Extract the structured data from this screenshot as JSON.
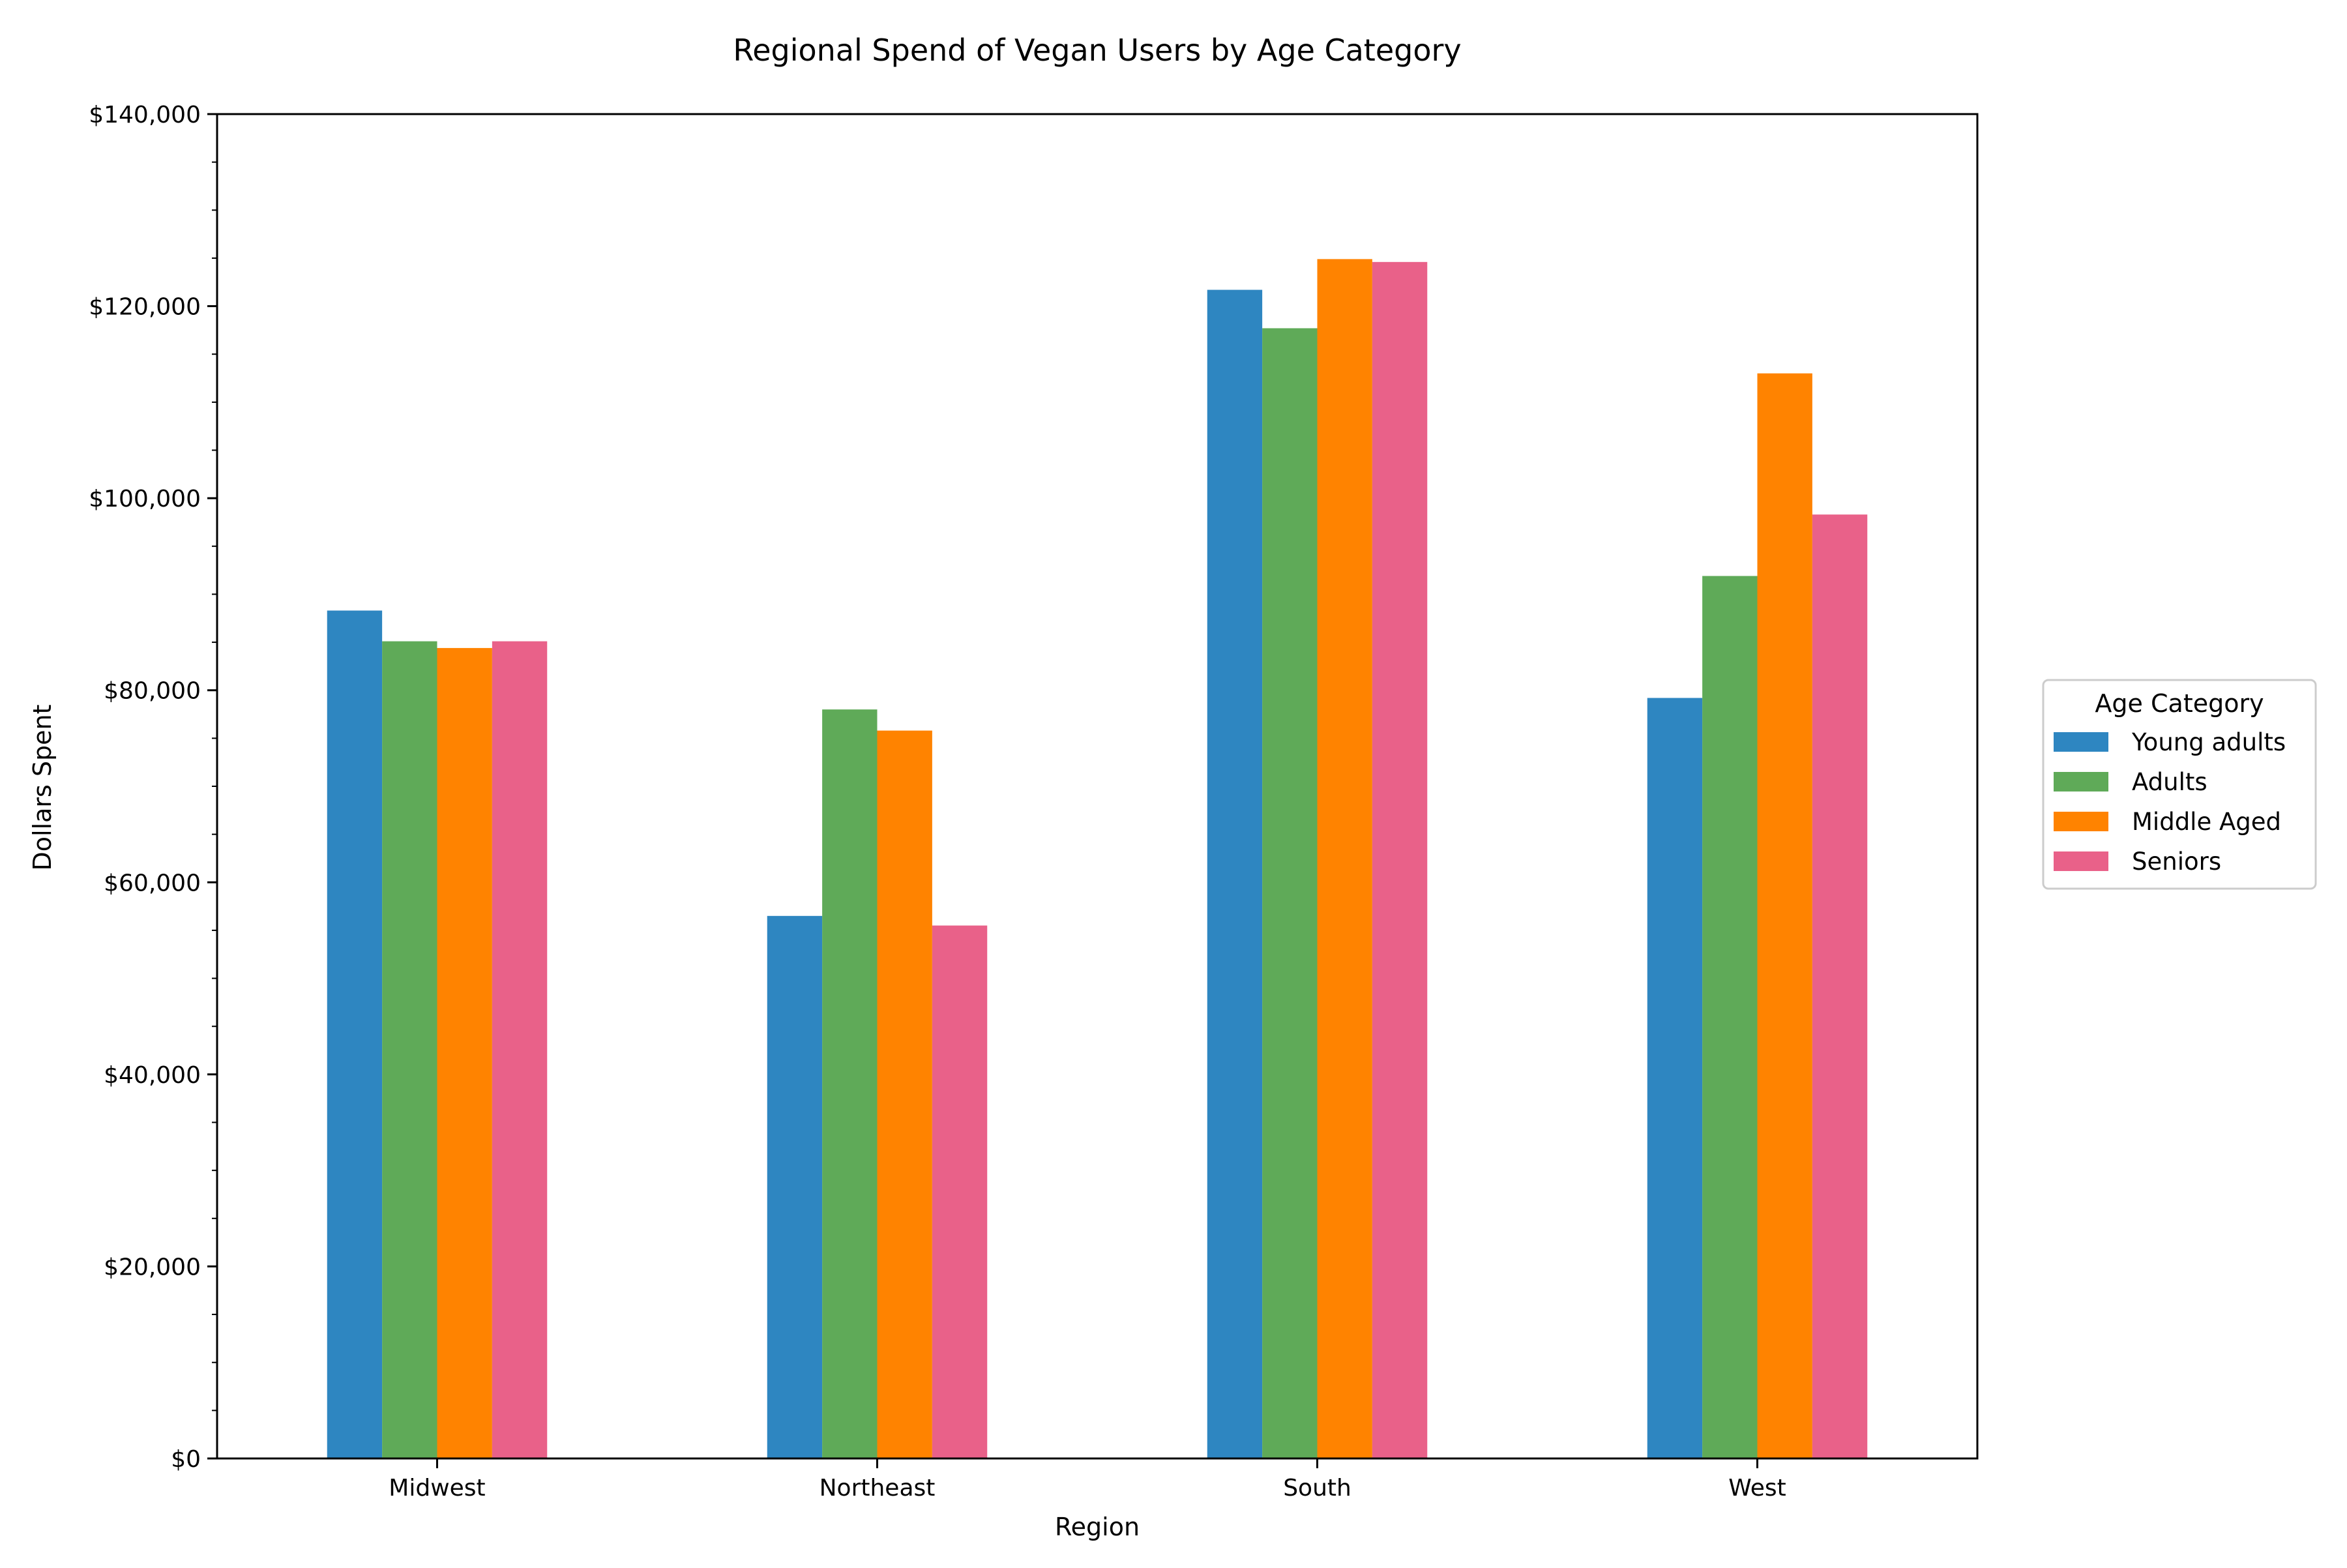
{
  "chart_data": {
    "type": "bar",
    "title": "Regional Spend of Vegan Users by Age Category",
    "xlabel": "Region",
    "ylabel": "Dollars Spent",
    "categories": [
      "Midwest",
      "Northeast",
      "South",
      "West"
    ],
    "series": [
      {
        "name": "Young adults",
        "color": "#2e86c1",
        "values": [
          88300,
          56500,
          121700,
          79200
        ]
      },
      {
        "name": "Adults",
        "color": "#5faa58",
        "values": [
          85100,
          78000,
          117700,
          91900
        ]
      },
      {
        "name": "Middle Aged",
        "color": "#ff8300",
        "values": [
          84400,
          75800,
          124900,
          113000
        ]
      },
      {
        "name": "Seniors",
        "color": "#e96189",
        "values": [
          85100,
          55500,
          124600,
          98300
        ]
      }
    ],
    "ylim": [
      0,
      140000
    ],
    "yticks": [
      0,
      20000,
      40000,
      60000,
      80000,
      100000,
      120000,
      140000
    ],
    "ytick_labels": [
      "$0",
      "$20,000",
      "$40,000",
      "$60,000",
      "$80,000",
      "$100,000",
      "$120,000",
      "$140,000"
    ],
    "y_minor_step": 5000,
    "grid": false,
    "legend": {
      "title": "Age Category",
      "placement": "right"
    }
  }
}
